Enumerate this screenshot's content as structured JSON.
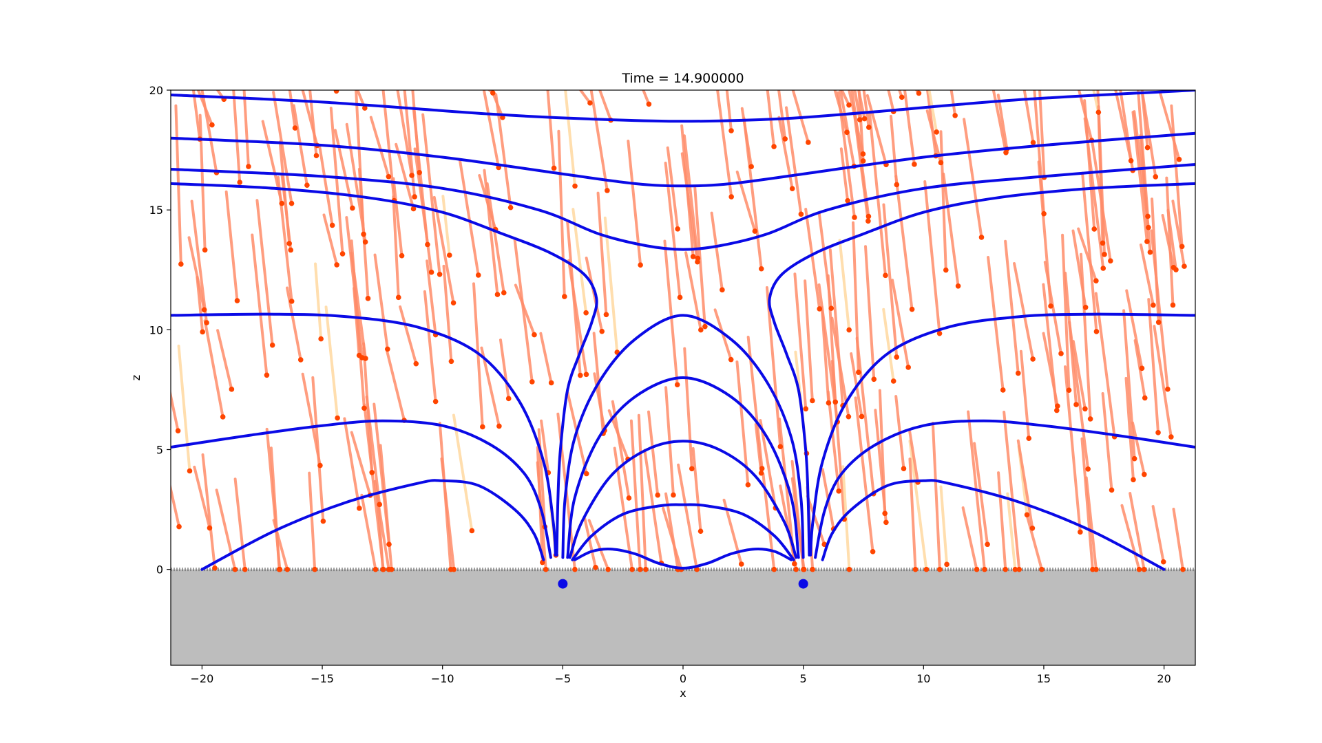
{
  "chart_data": {
    "type": "line",
    "title": "Time = 14.900000",
    "xlabel": "x",
    "ylabel": "z",
    "xlim": [
      -21.3,
      21.3
    ],
    "ylim": [
      -4,
      20
    ],
    "xticks": [
      -20,
      -15,
      -10,
      -5,
      0,
      5,
      10,
      15,
      20
    ],
    "yticks": [
      0,
      5,
      10,
      15,
      20
    ],
    "xtick_labels": [
      "−20",
      "−15",
      "−10",
      "−5",
      "0",
      "5",
      "10",
      "15",
      "20"
    ],
    "ytick_labels": [
      "0",
      "5",
      "10",
      "15",
      "20"
    ],
    "grid": false,
    "ground": {
      "z_top": 0,
      "color": "#bdbdbd"
    },
    "sources": [
      {
        "x": -5,
        "z": -0.6
      },
      {
        "x": 5,
        "z": -0.6
      }
    ],
    "colors": {
      "field_line": "#0a0ae6",
      "particle": "#ff4500",
      "trail": "#ff8c69",
      "trail_faint": "#ffd9a0",
      "source": "#0a0ae6"
    },
    "field_lines": [
      [
        [
          -21.3,
          19.8
        ],
        [
          -15,
          19.5
        ],
        [
          -8,
          19.0
        ],
        [
          -4,
          18.8
        ],
        [
          0,
          18.7
        ],
        [
          4,
          18.8
        ],
        [
          8,
          19.1
        ],
        [
          14,
          19.6
        ],
        [
          21.3,
          20.0
        ]
      ],
      [
        [
          -21.3,
          18.0
        ],
        [
          -15,
          17.7
        ],
        [
          -10,
          17.2
        ],
        [
          -5,
          16.5
        ],
        [
          -2,
          16.1
        ],
        [
          0,
          16.0
        ],
        [
          2,
          16.1
        ],
        [
          5,
          16.5
        ],
        [
          10,
          17.2
        ],
        [
          15,
          17.7
        ],
        [
          21.3,
          18.2
        ]
      ],
      [
        [
          -21.3,
          16.7
        ],
        [
          -15,
          16.4
        ],
        [
          -10,
          15.9
        ],
        [
          -6,
          15.0
        ],
        [
          -3.5,
          14.0
        ],
        [
          -1.5,
          13.5
        ],
        [
          0,
          13.35
        ],
        [
          1.5,
          13.5
        ],
        [
          3.5,
          14.0
        ],
        [
          6,
          15.0
        ],
        [
          10,
          15.9
        ],
        [
          15,
          16.4
        ],
        [
          21.3,
          16.9
        ]
      ],
      [
        [
          -21.3,
          16.1
        ],
        [
          -17,
          15.9
        ],
        [
          -13,
          15.5
        ],
        [
          -10,
          14.9
        ],
        [
          -7.5,
          14.0
        ],
        [
          -5.5,
          13.2
        ],
        [
          -4.1,
          12.3
        ],
        [
          -3.6,
          11.3
        ],
        [
          -3.8,
          10.3
        ],
        [
          -4.3,
          9.0
        ],
        [
          -4.8,
          7.5
        ],
        [
          -5.1,
          5.0
        ],
        [
          -5.2,
          3.0
        ],
        [
          -5.25,
          0.6
        ]
      ],
      [
        [
          5.25,
          0.6
        ],
        [
          5.2,
          3.0
        ],
        [
          5.1,
          5.0
        ],
        [
          4.8,
          7.5
        ],
        [
          4.3,
          9.0
        ],
        [
          3.8,
          10.3
        ],
        [
          3.6,
          11.3
        ],
        [
          4.1,
          12.3
        ],
        [
          5.5,
          13.2
        ],
        [
          7.5,
          14.0
        ],
        [
          10,
          14.9
        ],
        [
          13,
          15.5
        ],
        [
          17,
          15.9
        ],
        [
          21.3,
          16.1
        ]
      ],
      [
        [
          -21.3,
          10.6
        ],
        [
          -17,
          10.65
        ],
        [
          -14,
          10.55
        ],
        [
          -11,
          10.1
        ],
        [
          -8.5,
          9.0
        ],
        [
          -6.8,
          7.0
        ],
        [
          -5.8,
          4.5
        ],
        [
          -5.4,
          2.0
        ],
        [
          -5.3,
          0.6
        ]
      ],
      [
        [
          5.3,
          0.6
        ],
        [
          5.4,
          2.0
        ],
        [
          5.8,
          4.5
        ],
        [
          6.8,
          7.0
        ],
        [
          8.5,
          9.0
        ],
        [
          11,
          10.1
        ],
        [
          14,
          10.55
        ],
        [
          17,
          10.65
        ],
        [
          21.3,
          10.6
        ]
      ],
      [
        [
          -21.3,
          5.1
        ],
        [
          -18,
          5.6
        ],
        [
          -15,
          6.0
        ],
        [
          -12.5,
          6.2
        ],
        [
          -10,
          6.0
        ],
        [
          -8,
          5.2
        ],
        [
          -6.6,
          4.0
        ],
        [
          -5.9,
          2.5
        ],
        [
          -5.5,
          0.5
        ]
      ],
      [
        [
          5.5,
          0.5
        ],
        [
          5.9,
          2.5
        ],
        [
          6.6,
          4.0
        ],
        [
          8,
          5.2
        ],
        [
          10,
          6.0
        ],
        [
          12.5,
          6.2
        ],
        [
          15,
          6.0
        ],
        [
          18,
          5.6
        ],
        [
          21.3,
          5.1
        ]
      ],
      [
        [
          -20,
          0.0
        ],
        [
          -17,
          1.6
        ],
        [
          -14,
          2.8
        ],
        [
          -11,
          3.6
        ],
        [
          -10,
          3.7
        ],
        [
          -8.5,
          3.5
        ],
        [
          -7,
          2.5
        ],
        [
          -6.2,
          1.5
        ],
        [
          -5.8,
          0.4
        ]
      ],
      [
        [
          5.8,
          0.4
        ],
        [
          6.2,
          1.5
        ],
        [
          7,
          2.5
        ],
        [
          8.5,
          3.5
        ],
        [
          10,
          3.7
        ],
        [
          11,
          3.6
        ],
        [
          14,
          2.8
        ],
        [
          17,
          1.6
        ],
        [
          20,
          0.0
        ]
      ],
      [
        [
          -5.0,
          0.5
        ],
        [
          -4.9,
          3.0
        ],
        [
          -4.5,
          5.5
        ],
        [
          -3.5,
          7.8
        ],
        [
          -2,
          9.6
        ],
        [
          0,
          10.6
        ],
        [
          2,
          9.6
        ],
        [
          3.5,
          7.8
        ],
        [
          4.5,
          5.5
        ],
        [
          4.9,
          3.0
        ],
        [
          5.0,
          0.5
        ]
      ],
      [
        [
          -4.8,
          0.5
        ],
        [
          -4.5,
          3.0
        ],
        [
          -3.5,
          5.5
        ],
        [
          -2,
          7.2
        ],
        [
          0,
          8.0
        ],
        [
          2,
          7.2
        ],
        [
          3.5,
          5.5
        ],
        [
          4.5,
          3.0
        ],
        [
          4.8,
          0.5
        ]
      ],
      [
        [
          -4.7,
          0.5
        ],
        [
          -4.2,
          2.0
        ],
        [
          -3,
          3.9
        ],
        [
          -1.5,
          5.0
        ],
        [
          0,
          5.35
        ],
        [
          1.5,
          5.0
        ],
        [
          3,
          3.9
        ],
        [
          4.2,
          2.0
        ],
        [
          4.7,
          0.5
        ]
      ],
      [
        [
          -4.6,
          0.4
        ],
        [
          -3.8,
          1.4
        ],
        [
          -2.5,
          2.3
        ],
        [
          -1,
          2.65
        ],
        [
          0,
          2.7
        ],
        [
          1,
          2.65
        ],
        [
          2.5,
          2.3
        ],
        [
          3.8,
          1.4
        ],
        [
          4.6,
          0.4
        ]
      ],
      [
        [
          -4.5,
          0.4
        ],
        [
          -3.8,
          0.75
        ],
        [
          -3,
          0.85
        ],
        [
          -2,
          0.65
        ],
        [
          -1,
          0.25
        ],
        [
          0,
          0.05
        ],
        [
          1,
          0.25
        ],
        [
          2,
          0.65
        ],
        [
          3,
          0.85
        ],
        [
          3.8,
          0.75
        ],
        [
          4.5,
          0.4
        ]
      ]
    ]
  }
}
